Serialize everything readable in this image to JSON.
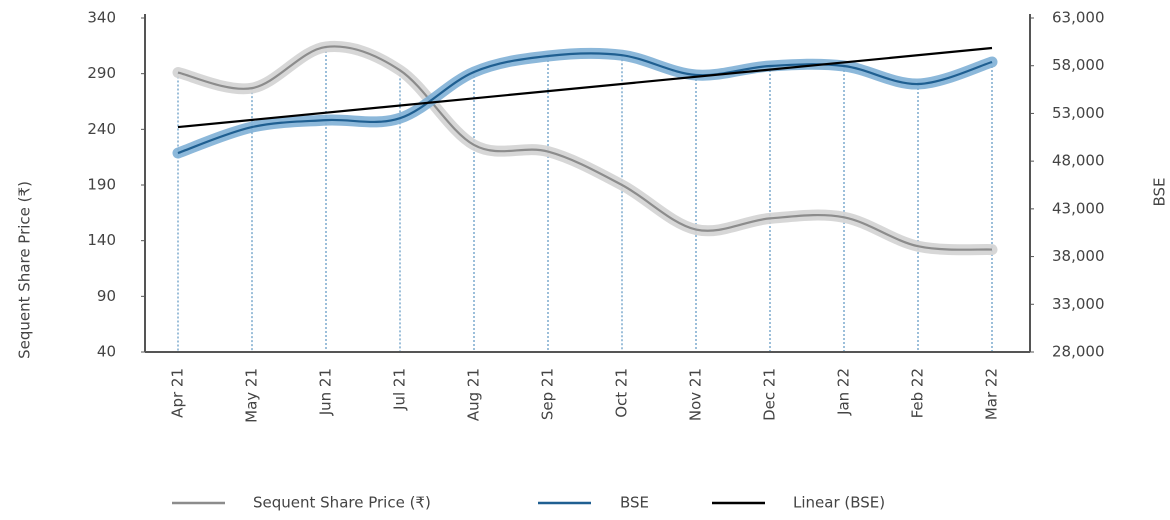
{
  "chart_data": {
    "type": "line",
    "categories": [
      "Apr 21",
      "May 21",
      "Jun 21",
      "Jul 21",
      "Aug 21",
      "Sep 21",
      "Oct 21",
      "Nov 21",
      "Dec 21",
      "Jan 22",
      "Feb 22",
      "Mar 22"
    ],
    "ylabel": "Sequent Share Price (₹)",
    "y2label": "BSE",
    "ylim": [
      40,
      340
    ],
    "yticks": [
      40,
      90,
      140,
      190,
      240,
      290,
      340
    ],
    "y2lim": [
      28000,
      63000
    ],
    "y2ticks": [
      {
        "value": 28000,
        "label": "28,000"
      },
      {
        "value": 33000,
        "label": "33,000"
      },
      {
        "value": 38000,
        "label": "38,000"
      },
      {
        "value": 43000,
        "label": "43,000"
      },
      {
        "value": 48000,
        "label": "48,000"
      },
      {
        "value": 53000,
        "label": "53,000"
      },
      {
        "value": 58000,
        "label": "58,000"
      },
      {
        "value": 63000,
        "label": "63,000"
      }
    ],
    "series": [
      {
        "name": "Sequent Share Price (₹)",
        "color": "#8c8c8c",
        "glow": "#d3d3d3",
        "values": [
          291,
          277,
          314,
          293,
          226,
          220,
          190,
          150,
          160,
          161,
          135,
          132
        ]
      },
      {
        "name": "BSE",
        "color": "#1f5f91",
        "glow": "#80b0d6",
        "axis": "y2",
        "values": [
          48850,
          51570,
          52300,
          52500,
          57340,
          59020,
          59100,
          57030,
          57970,
          57970,
          56080,
          58390
        ]
      },
      {
        "name": "Linear (BSE)",
        "color": "#000000",
        "axis": "y2",
        "straight": true,
        "values": [
          51570,
          52323,
          53076,
          53829,
          54582,
          55335,
          56088,
          56841,
          57594,
          58347,
          59100,
          59853
        ]
      }
    ]
  }
}
